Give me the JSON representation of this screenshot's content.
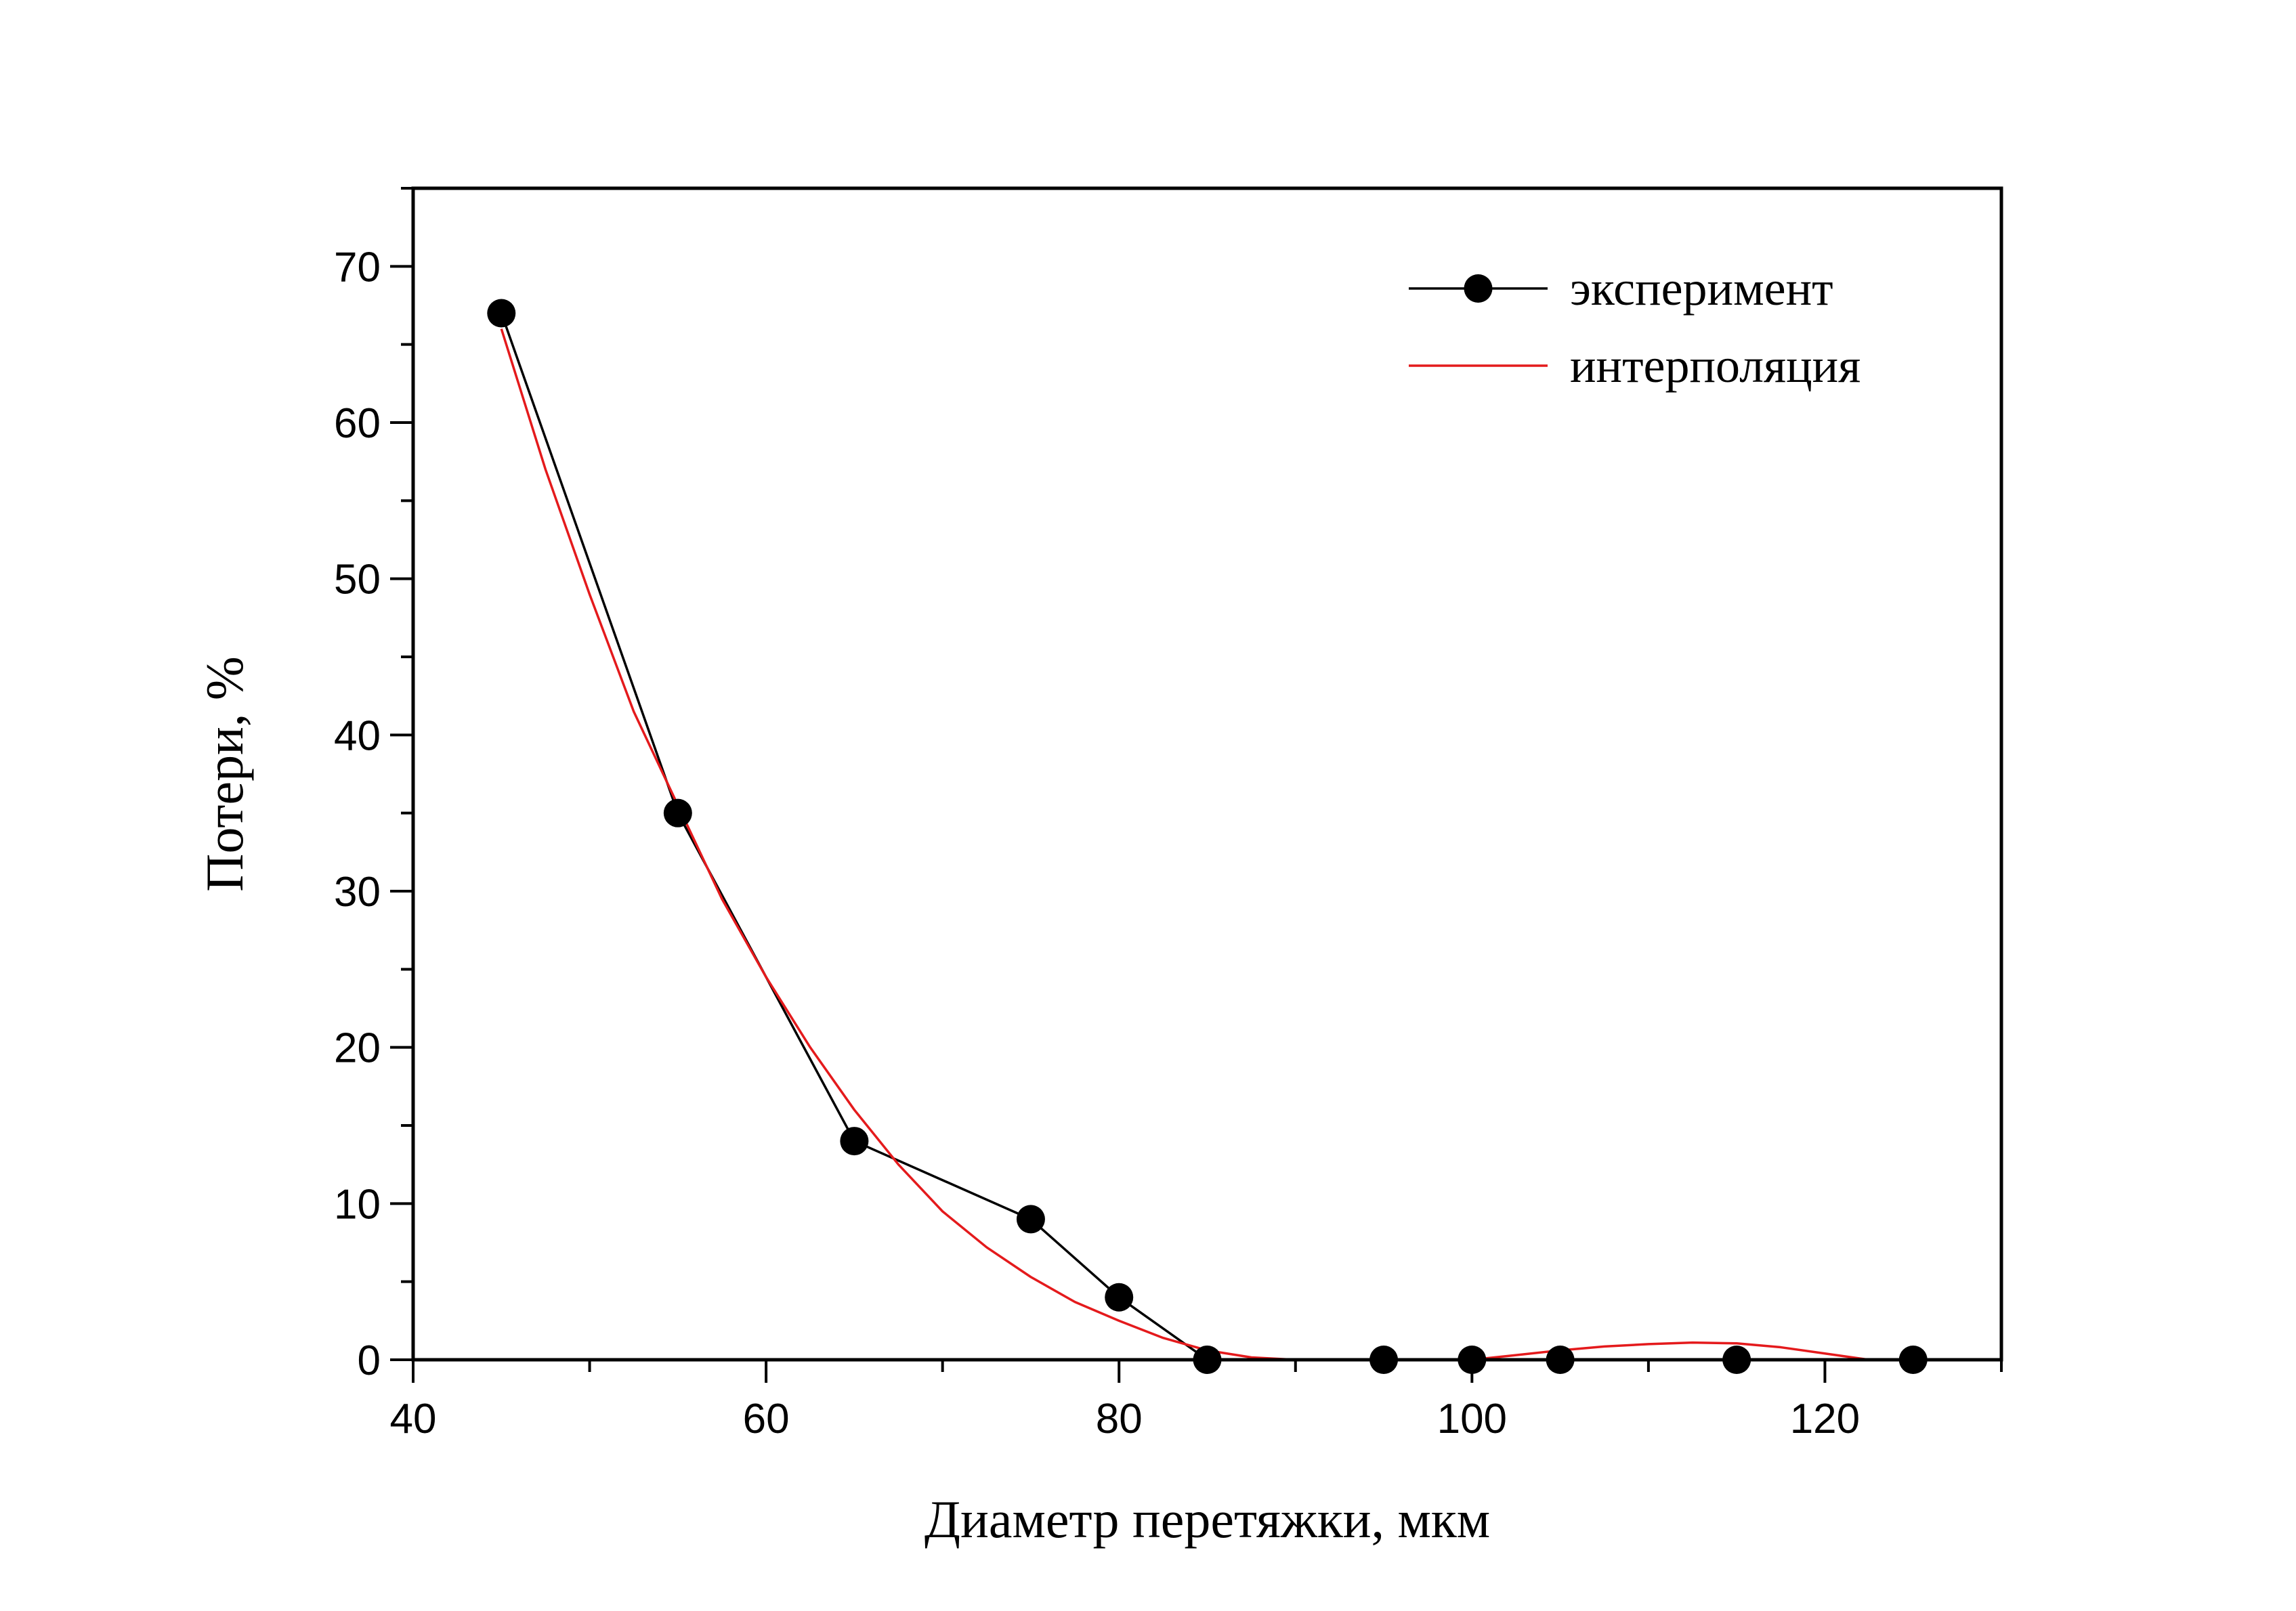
{
  "chart_data": {
    "type": "line",
    "xlabel": "Диаметр перетяжки, мкм",
    "ylabel": "Потери, %",
    "xlim": [
      40,
      130
    ],
    "ylim": [
      0,
      75
    ],
    "x_ticks": [
      40,
      60,
      80,
      100,
      120
    ],
    "y_ticks": [
      0,
      10,
      20,
      30,
      40,
      50,
      60,
      70
    ],
    "x_minor_step": 10,
    "y_minor_step": 5,
    "grid": false,
    "legend_position": "top-right",
    "series": [
      {
        "name": "эксперимент",
        "style": "line-with-markers",
        "color": "#000000",
        "x": [
          45,
          55,
          65,
          75,
          80,
          85,
          95,
          100,
          105,
          115,
          125
        ],
        "y": [
          67,
          35,
          14,
          9,
          4,
          0,
          0,
          0,
          0,
          0,
          0
        ]
      },
      {
        "name": "интерполяция",
        "style": "line",
        "color": "#e41a1c",
        "x": [
          45,
          47.5,
          50,
          52.5,
          55,
          57.5,
          60,
          62.5,
          65,
          67.5,
          70,
          72.5,
          75,
          77.5,
          80,
          82.5,
          85,
          87.5,
          90,
          92.5,
          95,
          97.5,
          100,
          102.5,
          105,
          107.5,
          110,
          112.5,
          115,
          117.5,
          120,
          122.5
        ],
        "y": [
          66,
          57,
          49,
          41.5,
          35.5,
          29.5,
          24.5,
          20,
          16,
          12.5,
          9.5,
          7.2,
          5.3,
          3.7,
          2.5,
          1.4,
          0.6,
          0.15,
          0,
          0,
          0,
          0,
          0,
          0.3,
          0.6,
          0.85,
          1.0,
          1.1,
          1.05,
          0.8,
          0.4,
          0
        ]
      }
    ]
  }
}
